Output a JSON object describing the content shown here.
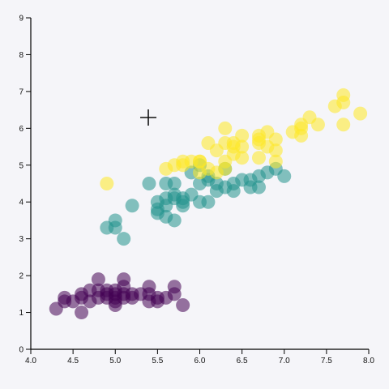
{
  "chart_data": {
    "type": "scatter",
    "title": "",
    "xlabel": "",
    "ylabel": "",
    "xlim": [
      4.0,
      8.0
    ],
    "ylim": [
      0,
      9
    ],
    "x_ticks": [
      "4.0",
      "4.5",
      "5.0",
      "5.5",
      "6.0",
      "6.5",
      "7.0",
      "7.5",
      "8.0"
    ],
    "y_ticks": [
      "0",
      "1",
      "2",
      "3",
      "4",
      "5",
      "6",
      "7",
      "8",
      "9"
    ],
    "grid": false,
    "legend": "none",
    "series": [
      {
        "color": "#440154",
        "points": [
          [
            4.3,
            1.1
          ],
          [
            4.4,
            1.4
          ],
          [
            4.4,
            1.3
          ],
          [
            4.5,
            1.3
          ],
          [
            4.6,
            1.4
          ],
          [
            4.6,
            1.5
          ],
          [
            4.6,
            1.0
          ],
          [
            4.7,
            1.3
          ],
          [
            4.7,
            1.6
          ],
          [
            4.8,
            1.6
          ],
          [
            4.8,
            1.4
          ],
          [
            4.8,
            1.9
          ],
          [
            4.9,
            1.4
          ],
          [
            4.9,
            1.5
          ],
          [
            4.9,
            1.6
          ],
          [
            5.0,
            1.4
          ],
          [
            5.0,
            1.5
          ],
          [
            5.0,
            1.2
          ],
          [
            5.0,
            1.6
          ],
          [
            5.1,
            1.4
          ],
          [
            5.1,
            1.5
          ],
          [
            5.1,
            1.9
          ],
          [
            5.1,
            1.7
          ],
          [
            5.2,
            1.5
          ],
          [
            5.2,
            1.4
          ],
          [
            5.3,
            1.5
          ],
          [
            5.4,
            1.7
          ],
          [
            5.4,
            1.5
          ],
          [
            5.4,
            1.3
          ],
          [
            5.5,
            1.4
          ],
          [
            5.5,
            1.3
          ],
          [
            5.7,
            1.7
          ],
          [
            5.7,
            1.5
          ],
          [
            5.8,
            1.2
          ],
          [
            5.0,
            1.3
          ],
          [
            5.6,
            1.4
          ]
        ]
      },
      {
        "color": "#21918c",
        "points": [
          [
            4.9,
            3.3
          ],
          [
            5.0,
            3.5
          ],
          [
            5.0,
            3.3
          ],
          [
            5.1,
            3.0
          ],
          [
            5.2,
            3.9
          ],
          [
            5.4,
            4.5
          ],
          [
            5.5,
            4.0
          ],
          [
            5.5,
            3.8
          ],
          [
            5.5,
            3.7
          ],
          [
            5.6,
            4.1
          ],
          [
            5.6,
            3.6
          ],
          [
            5.6,
            4.5
          ],
          [
            5.6,
            3.9
          ],
          [
            5.7,
            3.5
          ],
          [
            5.7,
            4.2
          ],
          [
            5.7,
            4.1
          ],
          [
            5.8,
            4.0
          ],
          [
            5.8,
            3.9
          ],
          [
            5.9,
            4.2
          ],
          [
            5.9,
            4.8
          ],
          [
            6.0,
            4.5
          ],
          [
            6.0,
            4.0
          ],
          [
            6.0,
            5.0
          ],
          [
            6.1,
            4.7
          ],
          [
            6.1,
            4.0
          ],
          [
            6.1,
            4.6
          ],
          [
            6.2,
            4.3
          ],
          [
            6.2,
            4.5
          ],
          [
            6.3,
            4.9
          ],
          [
            6.3,
            4.4
          ],
          [
            6.4,
            4.3
          ],
          [
            6.4,
            4.5
          ],
          [
            6.5,
            4.6
          ],
          [
            6.6,
            4.6
          ],
          [
            6.6,
            4.4
          ],
          [
            6.7,
            4.7
          ],
          [
            6.7,
            4.4
          ],
          [
            6.8,
            4.8
          ],
          [
            6.9,
            4.9
          ],
          [
            7.0,
            4.7
          ],
          [
            5.7,
            4.5
          ],
          [
            5.8,
            4.1
          ]
        ]
      },
      {
        "color": "#fde725",
        "points": [
          [
            4.9,
            4.5
          ],
          [
            5.6,
            4.9
          ],
          [
            5.7,
            5.0
          ],
          [
            5.8,
            5.1
          ],
          [
            5.9,
            5.1
          ],
          [
            6.0,
            4.8
          ],
          [
            6.0,
            5.1
          ],
          [
            6.1,
            5.6
          ],
          [
            6.1,
            4.9
          ],
          [
            6.2,
            4.8
          ],
          [
            6.2,
            5.4
          ],
          [
            6.3,
            6.0
          ],
          [
            6.3,
            5.6
          ],
          [
            6.3,
            5.1
          ],
          [
            6.3,
            4.9
          ],
          [
            6.4,
            5.5
          ],
          [
            6.4,
            5.3
          ],
          [
            6.4,
            5.6
          ],
          [
            6.5,
            5.8
          ],
          [
            6.5,
            5.5
          ],
          [
            6.5,
            5.2
          ],
          [
            6.7,
            5.7
          ],
          [
            6.7,
            5.8
          ],
          [
            6.7,
            5.6
          ],
          [
            6.7,
            5.2
          ],
          [
            6.8,
            5.5
          ],
          [
            6.8,
            5.9
          ],
          [
            6.9,
            5.4
          ],
          [
            6.9,
            5.7
          ],
          [
            7.1,
            5.9
          ],
          [
            7.2,
            6.0
          ],
          [
            7.2,
            6.1
          ],
          [
            7.2,
            5.8
          ],
          [
            7.3,
            6.3
          ],
          [
            7.4,
            6.1
          ],
          [
            7.6,
            6.6
          ],
          [
            7.7,
            6.7
          ],
          [
            7.7,
            6.9
          ],
          [
            7.7,
            6.1
          ],
          [
            7.9,
            6.4
          ],
          [
            6.9,
            5.1
          ],
          [
            5.8,
            5.0
          ],
          [
            6.0,
            5.1
          ]
        ]
      }
    ]
  }
}
